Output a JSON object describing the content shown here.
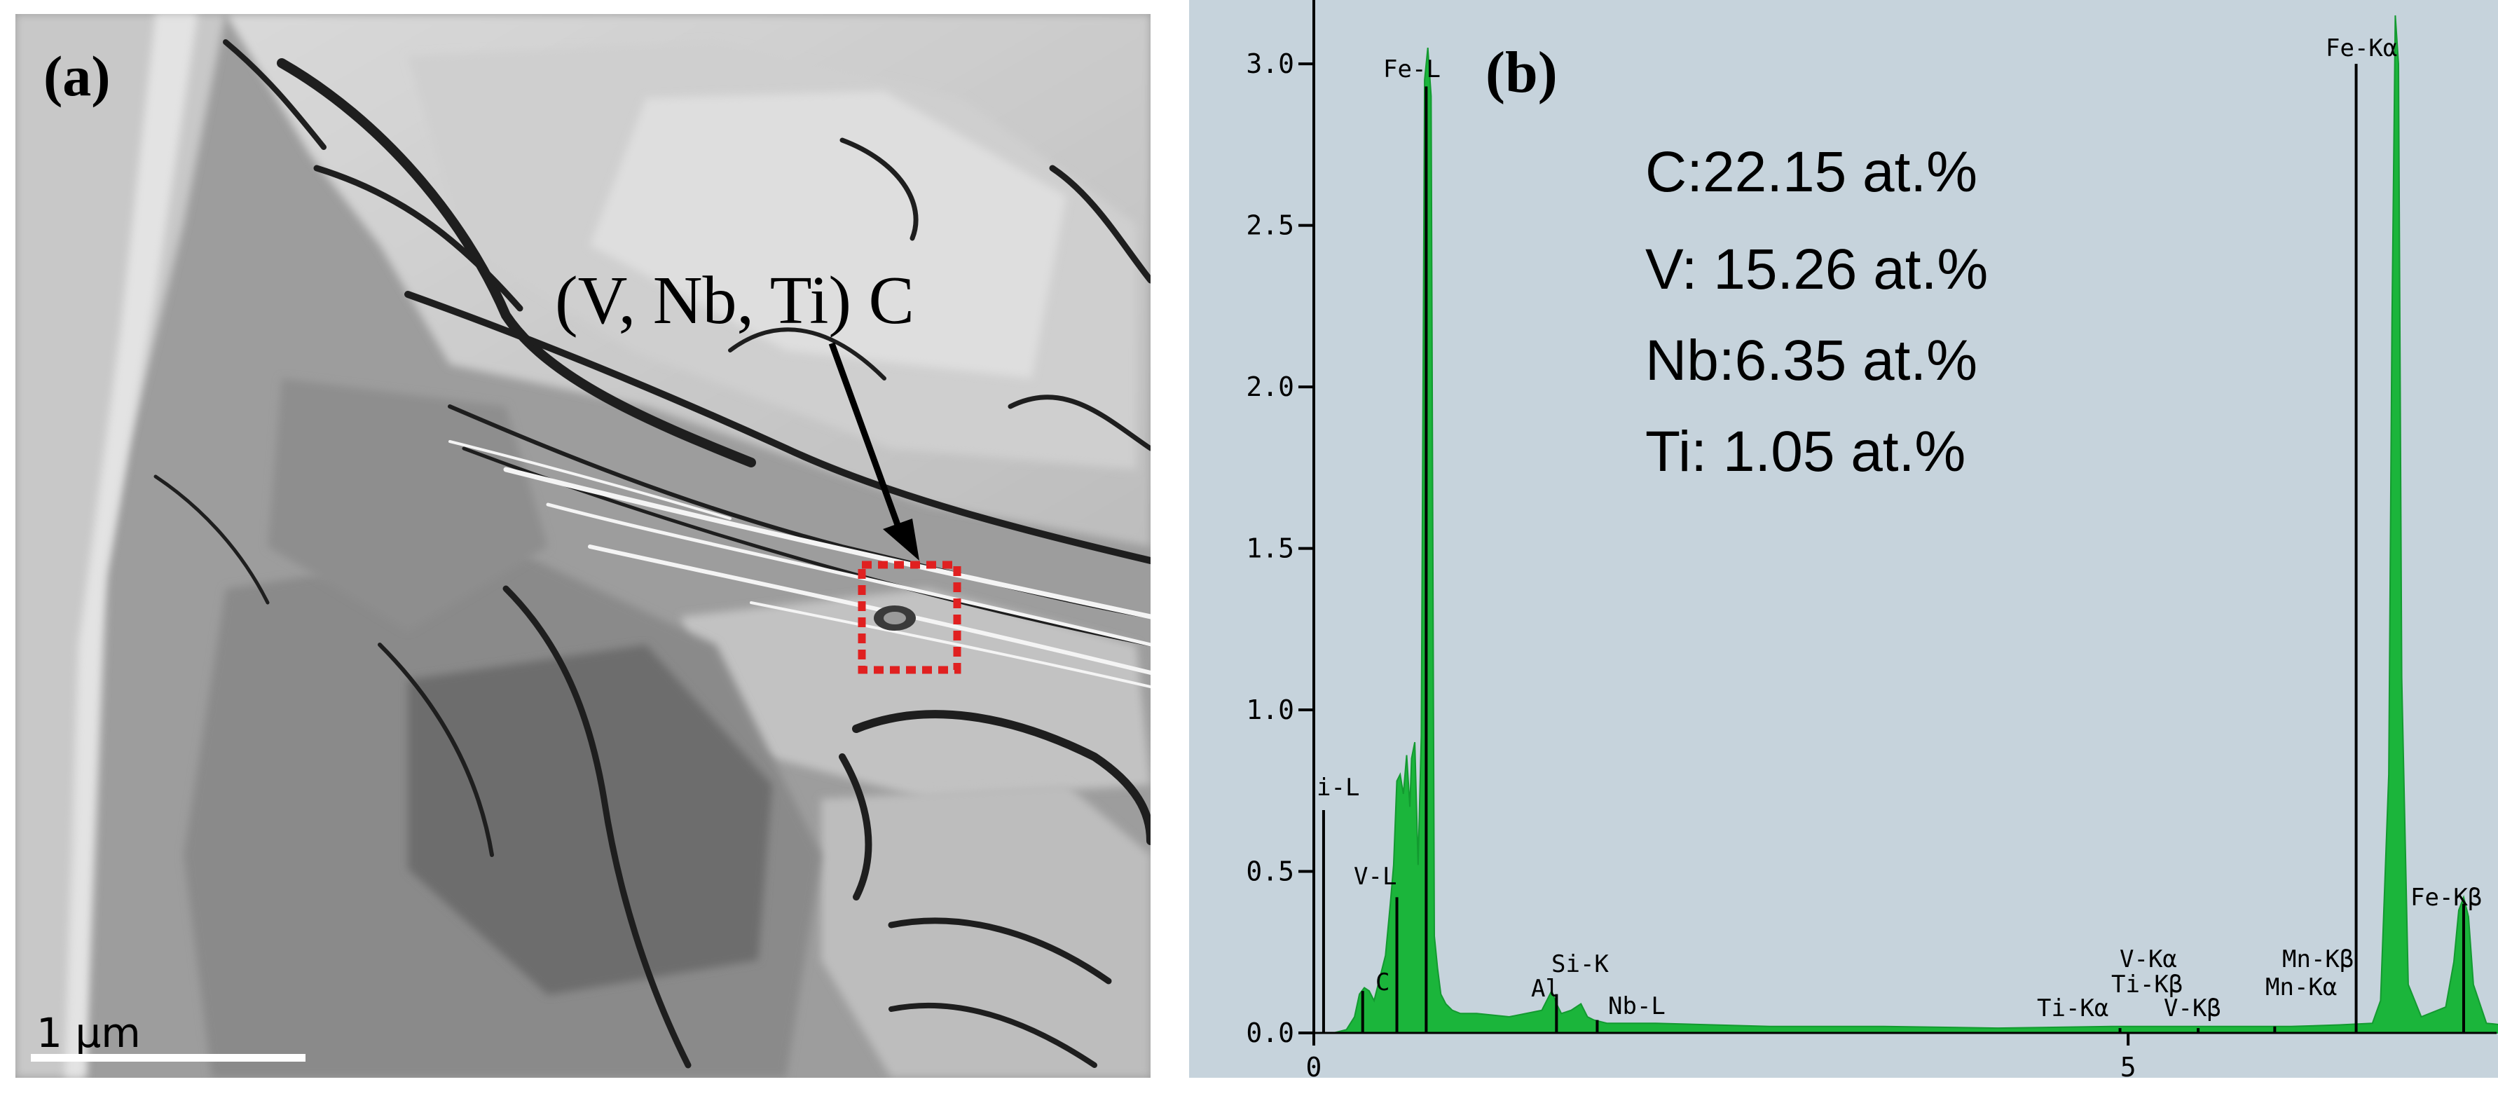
{
  "panel_a": {
    "label": "(a)",
    "annotation": "(V, Nb, Ti) C",
    "scale_bar_label": "1 μm",
    "marker_color": "#e02020"
  },
  "panel_b": {
    "label": "(b)",
    "composition": [
      "C:22.15 at.%",
      "V: 15.26 at.%",
      "Nb:6.35 at.%",
      "Ti: 1.05 at.%"
    ]
  },
  "chart_data": {
    "type": "area",
    "xlim": [
      0,
      7.4
    ],
    "ylim": [
      0,
      3.15
    ],
    "xticks": [
      0,
      5
    ],
    "yticks": [
      "0.0",
      "0.5",
      "1.0",
      "1.5",
      "2.0",
      "2.5",
      "3.0"
    ],
    "grid": false,
    "fill_color": "#1bb53b",
    "background_color": "#c6d3dc",
    "series": [
      {
        "x": [
          0.0,
          0.12,
          0.2,
          0.25,
          0.28,
          0.31,
          0.34,
          0.37,
          0.4,
          0.44,
          0.47,
          0.49,
          0.51,
          0.53,
          0.55,
          0.57,
          0.59,
          0.6,
          0.62,
          0.64,
          0.66,
          0.68,
          0.7,
          0.72,
          0.74,
          0.76,
          0.78,
          0.81,
          0.85,
          0.9,
          1.0,
          1.2,
          1.4,
          1.46,
          1.49,
          1.52,
          1.58,
          1.64,
          1.68,
          1.72,
          1.8,
          2.1,
          2.8,
          3.5,
          4.2,
          4.9,
          5.5,
          6.0,
          6.3,
          6.5,
          6.55,
          6.6,
          6.62,
          6.64,
          6.66,
          6.68,
          6.72,
          6.8,
          6.95,
          7.0,
          7.03,
          7.06,
          7.09,
          7.12,
          7.2,
          7.4
        ],
        "y": [
          0.0,
          0.0,
          0.01,
          0.05,
          0.12,
          0.14,
          0.13,
          0.1,
          0.16,
          0.24,
          0.4,
          0.52,
          0.78,
          0.8,
          0.74,
          0.86,
          0.7,
          0.85,
          0.9,
          0.52,
          0.92,
          2.95,
          3.05,
          2.9,
          0.3,
          0.2,
          0.12,
          0.09,
          0.07,
          0.06,
          0.06,
          0.05,
          0.07,
          0.13,
          0.09,
          0.06,
          0.07,
          0.09,
          0.05,
          0.04,
          0.03,
          0.03,
          0.02,
          0.02,
          0.015,
          0.02,
          0.02,
          0.02,
          0.025,
          0.03,
          0.1,
          0.8,
          2.2,
          3.15,
          3.0,
          1.1,
          0.15,
          0.05,
          0.08,
          0.22,
          0.38,
          0.42,
          0.36,
          0.15,
          0.03,
          0.02
        ]
      }
    ],
    "lines": [
      {
        "x": 0.06,
        "y": 0.69
      },
      {
        "x": 0.3,
        "y": 0.13
      },
      {
        "x": 0.51,
        "y": 0.42
      },
      {
        "x": 0.69,
        "y": 2.93
      },
      {
        "x": 1.49,
        "y": 0.12
      },
      {
        "x": 1.74,
        "y": 0.04
      },
      {
        "x": 4.95,
        "y": 0.015
      },
      {
        "x": 5.43,
        "y": 0.015
      },
      {
        "x": 5.9,
        "y": 0.02
      },
      {
        "x": 6.4,
        "y": 3.0
      },
      {
        "x": 7.06,
        "y": 0.4
      }
    ],
    "peak_labels": [
      "i-L",
      "V-L",
      "C",
      "Fe-L",
      "Si-K",
      "Al",
      "Nb-L",
      "Ti-Kα",
      "V-Kα",
      "Ti-Kβ",
      "V-Kβ",
      "Mn-Kα",
      "Mn-Kβ",
      "Fe-Kα",
      "Fe-Kβ"
    ]
  }
}
